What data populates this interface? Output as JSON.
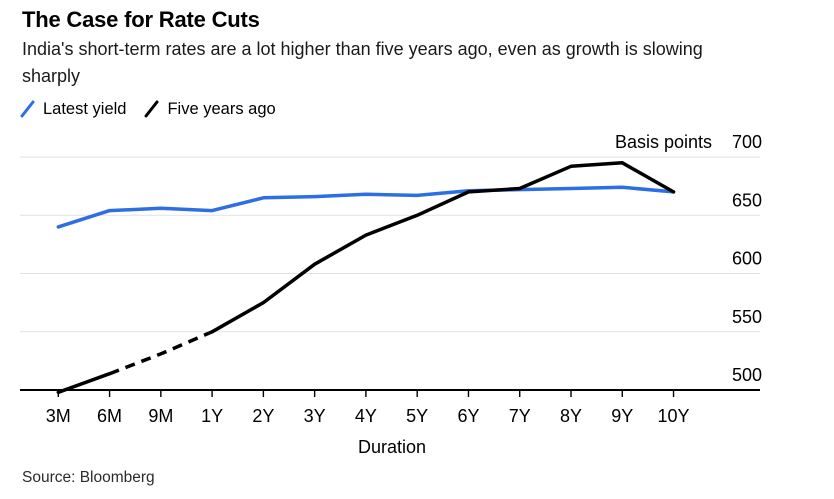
{
  "header": {
    "title": "The Case for Rate Cuts",
    "subtitle": "India's short-term rates are a lot higher than five years ago, even as growth is slowing sharply"
  },
  "legend": {
    "items": [
      {
        "label": "Latest yield",
        "color": "#2d6fe3"
      },
      {
        "label": "Five years ago",
        "color": "#000000"
      }
    ]
  },
  "source": "Source: Bloomberg",
  "colors": {
    "accent_blue": "#2d6fe3",
    "line_black": "#000000",
    "gridline": "#e2e2e2",
    "axis": "#000000"
  },
  "chart_data": {
    "type": "line",
    "title": "The Case for Rate Cuts",
    "subtitle": "India's short-term rates are a lot higher than five years ago, even as growth is slowing sharply",
    "unit_label": "Basis points",
    "xlabel": "Duration",
    "ylabel": "Basis points",
    "categories": [
      "3M",
      "6M",
      "9M",
      "1Y",
      "2Y",
      "3Y",
      "4Y",
      "5Y",
      "6Y",
      "7Y",
      "8Y",
      "9Y",
      "10Y"
    ],
    "series": [
      {
        "name": "Latest yield",
        "color": "#2d6fe3",
        "style": "solid",
        "values": [
          640,
          654,
          656,
          654,
          665,
          666,
          668,
          667,
          671,
          672,
          673,
          674,
          670
        ]
      },
      {
        "name": "Five years ago",
        "color": "#000000",
        "style": "solid",
        "dashed_between": [
          "6M",
          "1Y"
        ],
        "values": [
          498,
          514,
          531,
          550,
          575,
          608,
          633,
          650,
          670,
          673,
          692,
          695,
          670
        ]
      }
    ],
    "yticks": [
      500,
      550,
      600,
      650,
      700
    ],
    "ylim": [
      500,
      700
    ],
    "grid": "horizontal",
    "y_axis_side": "right",
    "legend_position": "top-left"
  }
}
